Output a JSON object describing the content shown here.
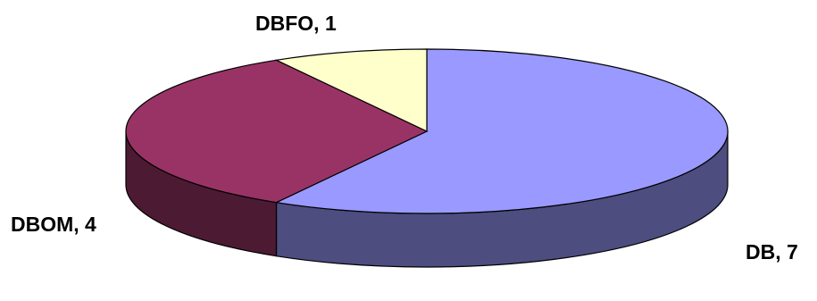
{
  "chart_data": {
    "type": "pie",
    "style": "3d",
    "title": "",
    "slices": [
      {
        "label": "DB, 7",
        "name": "DB",
        "value": 7,
        "color": "#9999ff"
      },
      {
        "label": "DBOM, 4",
        "name": "DBOM",
        "value": 4,
        "color": "#993366"
      },
      {
        "label": "DBFO, 1",
        "name": "DBFO",
        "value": 1,
        "color": "#ffffcc"
      }
    ],
    "legend": "none"
  }
}
